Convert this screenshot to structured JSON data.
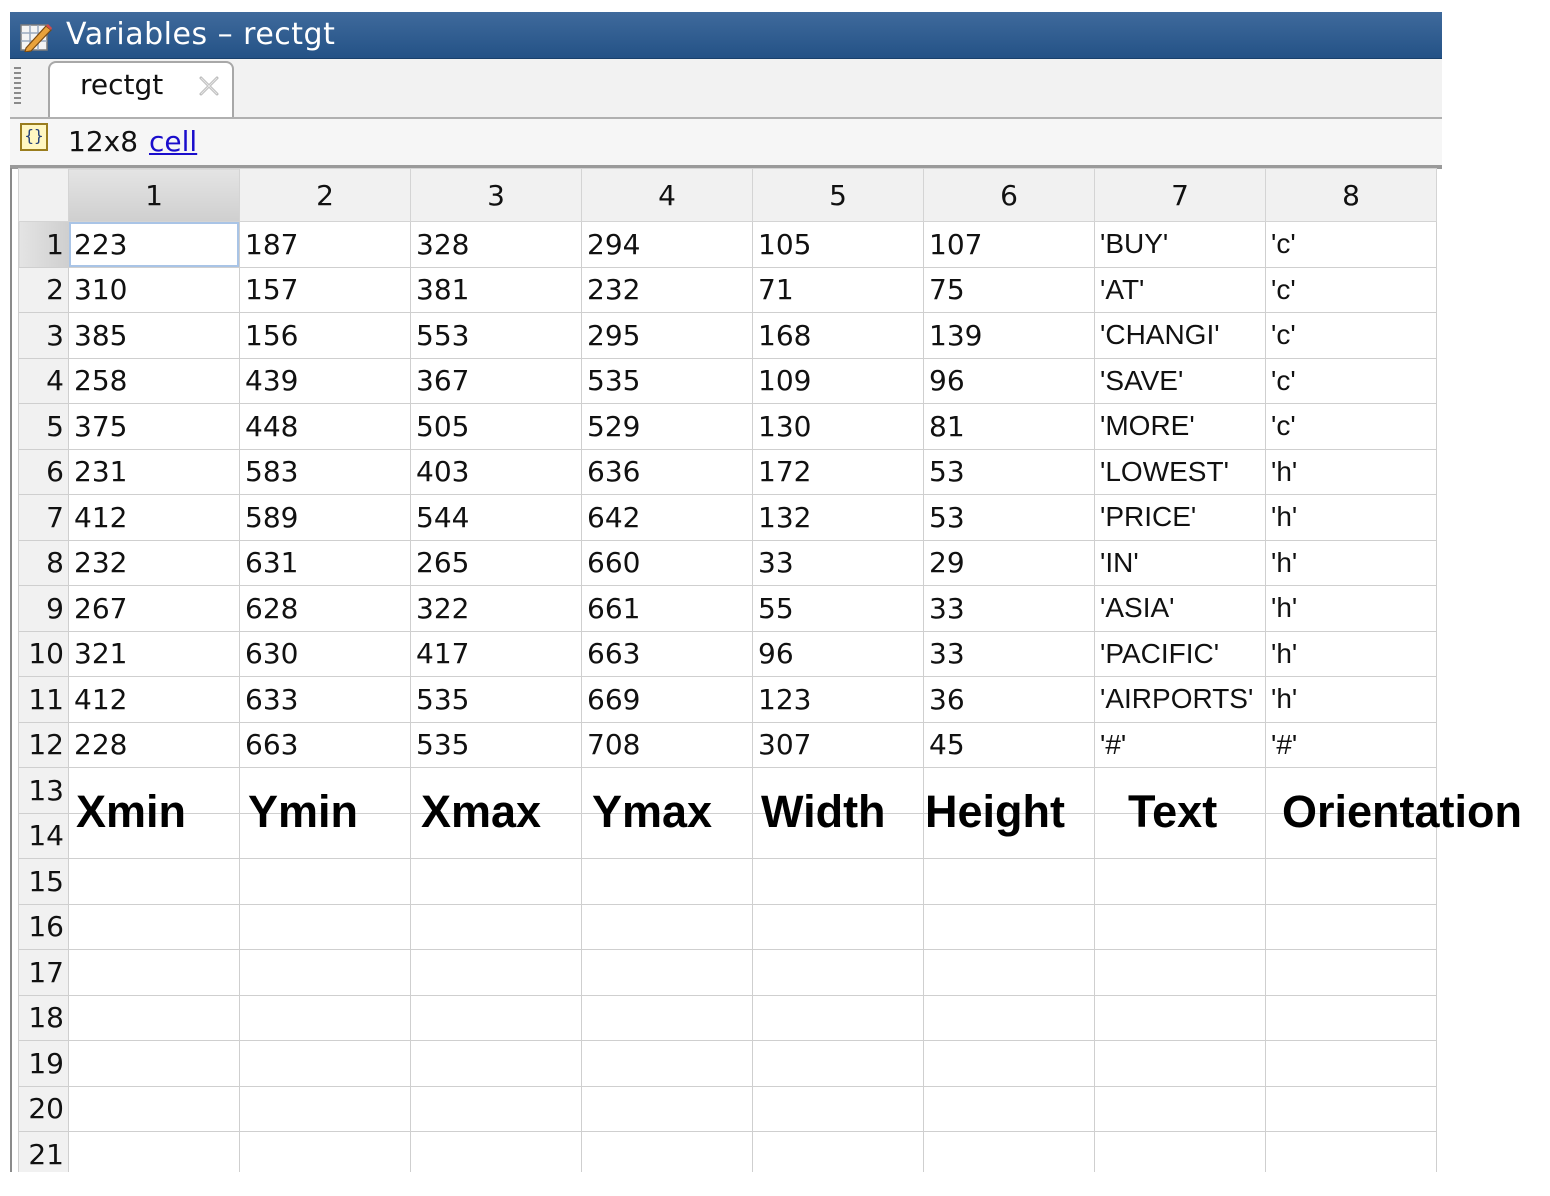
{
  "window": {
    "title": "Variables – rectgt"
  },
  "tab": {
    "label": "rectgt"
  },
  "info": {
    "size": "12x8",
    "class_link": "cell"
  },
  "grid": {
    "column_headers": [
      "1",
      "2",
      "3",
      "4",
      "5",
      "6",
      "7",
      "8"
    ],
    "row_headers": [
      "1",
      "2",
      "3",
      "4",
      "5",
      "6",
      "7",
      "8",
      "9",
      "10",
      "11",
      "12",
      "13",
      "14",
      "15",
      "16",
      "17",
      "18",
      "19",
      "20",
      "21"
    ],
    "rows": [
      [
        "223",
        "187",
        "328",
        "294",
        "105",
        "107",
        "'BUY'",
        "'c'"
      ],
      [
        "310",
        "157",
        "381",
        "232",
        "71",
        "75",
        "'AT'",
        "'c'"
      ],
      [
        "385",
        "156",
        "553",
        "295",
        "168",
        "139",
        "'CHANGI'",
        "'c'"
      ],
      [
        "258",
        "439",
        "367",
        "535",
        "109",
        "96",
        "'SAVE'",
        "'c'"
      ],
      [
        "375",
        "448",
        "505",
        "529",
        "130",
        "81",
        "'MORE'",
        "'c'"
      ],
      [
        "231",
        "583",
        "403",
        "636",
        "172",
        "53",
        "'LOWEST'",
        "'h'"
      ],
      [
        "412",
        "589",
        "544",
        "642",
        "132",
        "53",
        "'PRICE'",
        "'h'"
      ],
      [
        "232",
        "631",
        "265",
        "660",
        "33",
        "29",
        "'IN'",
        "'h'"
      ],
      [
        "267",
        "628",
        "322",
        "661",
        "55",
        "33",
        "'ASIA'",
        "'h'"
      ],
      [
        "321",
        "630",
        "417",
        "663",
        "96",
        "33",
        "'PACIFIC'",
        "'h'"
      ],
      [
        "412",
        "633",
        "535",
        "669",
        "123",
        "36",
        "'AIRPORTS'",
        "'h'"
      ],
      [
        "228",
        "663",
        "535",
        "708",
        "307",
        "45",
        "'#'",
        "'#'"
      ],
      [
        "",
        "",
        "",
        "",
        "",
        "",
        "",
        ""
      ],
      [
        "",
        "",
        "",
        "",
        "",
        "",
        "",
        ""
      ],
      [
        "",
        "",
        "",
        "",
        "",
        "",
        "",
        ""
      ],
      [
        "",
        "",
        "",
        "",
        "",
        "",
        "",
        ""
      ],
      [
        "",
        "",
        "",
        "",
        "",
        "",
        "",
        ""
      ],
      [
        "",
        "",
        "",
        "",
        "",
        "",
        "",
        ""
      ],
      [
        "",
        "",
        "",
        "",
        "",
        "",
        "",
        ""
      ],
      [
        "",
        "",
        "",
        "",
        "",
        "",
        "",
        ""
      ],
      [
        "",
        "",
        "",
        "",
        "",
        "",
        "",
        ""
      ]
    ]
  },
  "annotations": {
    "labels": [
      "Xmin",
      "Ymin",
      "Xmax",
      "Ymax",
      "Width",
      "Height",
      "Text",
      "Orientation"
    ]
  },
  "icons": {
    "title": "variable-editor-icon",
    "tab_close": "close-icon",
    "info": "cell-array-icon"
  },
  "colors": {
    "title_bar": "#2f5c92",
    "link": "#1a0dcc",
    "selected_header": "#d6d6d6",
    "active_cell_border": "#a9c4e6"
  }
}
